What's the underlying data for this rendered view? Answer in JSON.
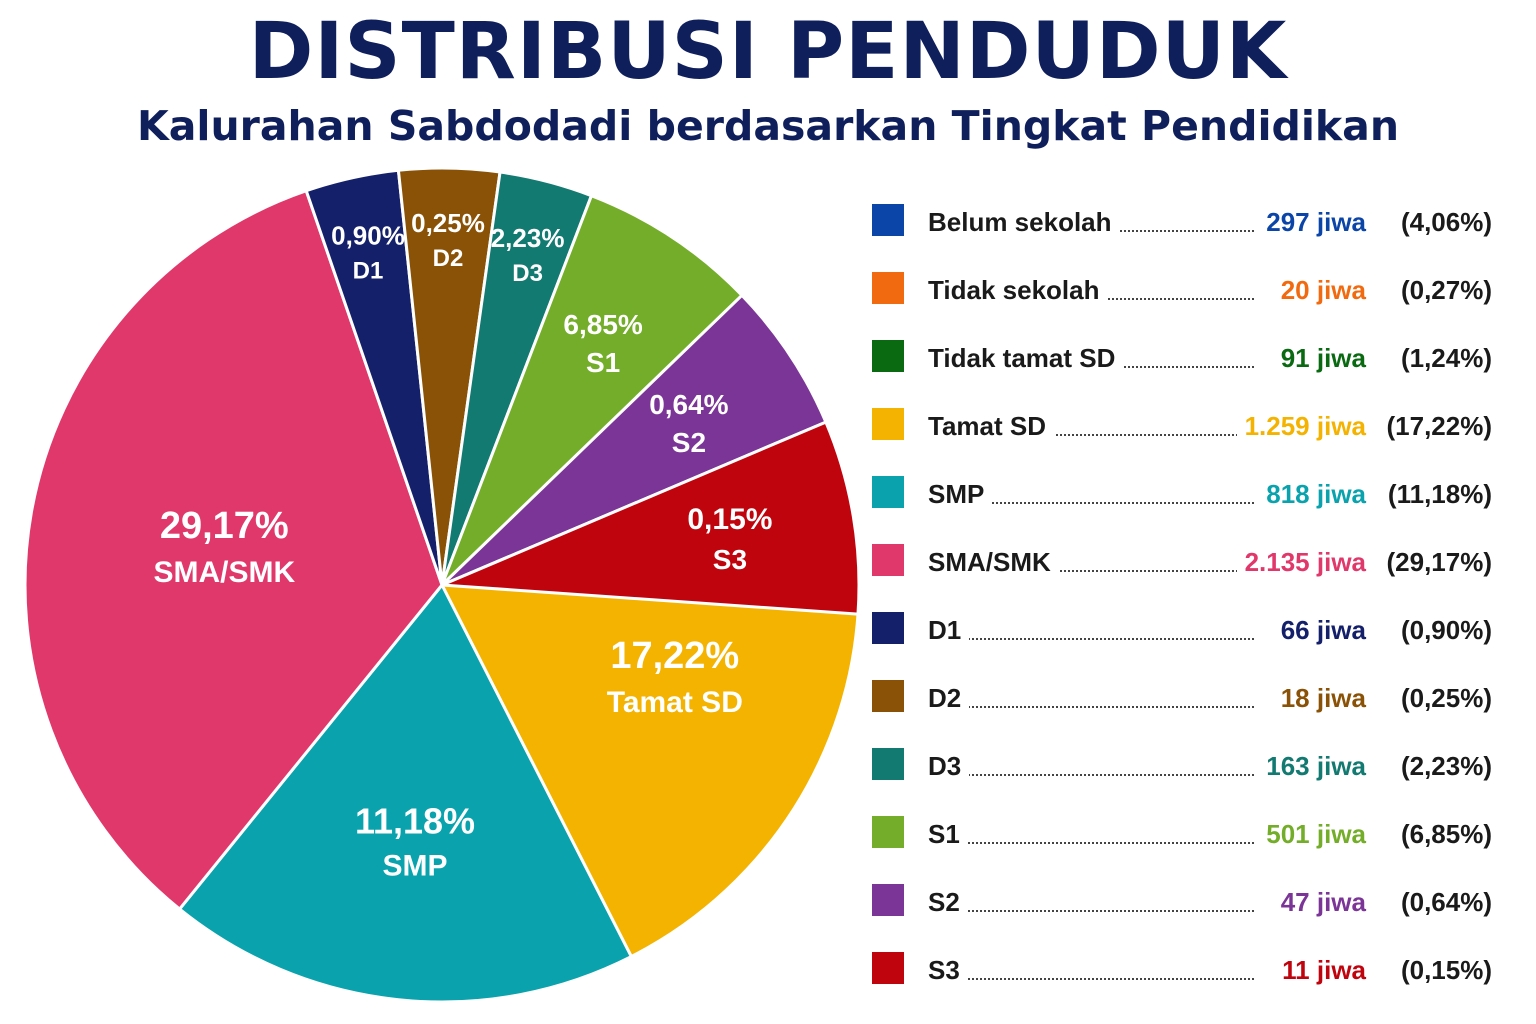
{
  "title": "DISTRIBUSI PENDUDUK",
  "subtitle": "Kalurahan Sabdodadi berdasarkan Tingkat Pendidikan",
  "chart_data": {
    "type": "pie",
    "title": "DISTRIBUSI PENDUDUK",
    "subtitle": "Kalurahan Sabdodadi berdasarkan Tingkat Pendidikan",
    "legend_position": "right",
    "unit": "jiwa",
    "slices": [
      {
        "name": "Belum sekolah",
        "value": 297,
        "value_label": "297 jiwa",
        "percent": 4.06,
        "percent_label": "4,06%",
        "legend_percent": "(4,06%)",
        "color": "#0b45a8"
      },
      {
        "name": "Tidak sekolah",
        "value": 20,
        "value_label": "20 jiwa",
        "percent": 0.27,
        "percent_label": "0,27%",
        "legend_percent": "(0,27%)",
        "color": "#f26a0f"
      },
      {
        "name": "Tidak tamat SD",
        "value": 91,
        "value_label": "91 jiwa",
        "percent": 1.24,
        "percent_label": "1,24%",
        "legend_percent": "(1,24%)",
        "color": "#0a6a12"
      },
      {
        "name": "Tamat SD",
        "value": 1259,
        "value_label": "1.259 jiwa",
        "percent": 17.22,
        "percent_label": "17,22%",
        "legend_percent": "(17,22%)",
        "color": "#f4b300"
      },
      {
        "name": "SMP",
        "value": 818,
        "value_label": "818 jiwa",
        "percent": 11.18,
        "percent_label": "11,18%",
        "legend_percent": "(11,18%)",
        "color": "#0aa3ad"
      },
      {
        "name": "SMA/SMK",
        "value": 2135,
        "value_label": "2.135 jiwa",
        "percent": 29.17,
        "percent_label": "29,17%",
        "legend_percent": "(29,17%)",
        "color": "#e0386b"
      },
      {
        "name": "D1",
        "value": 66,
        "value_label": "66 jiwa",
        "percent": 0.9,
        "percent_label": "0,90%",
        "legend_percent": "(0,90%)",
        "color": "#14216a"
      },
      {
        "name": "D2",
        "value": 18,
        "value_label": "18 jiwa",
        "percent": 0.25,
        "percent_label": "0,25%",
        "legend_percent": "(0,25%)",
        "color": "#8a5206"
      },
      {
        "name": "D3",
        "value": 163,
        "value_label": "163 jiwa",
        "percent": 2.23,
        "percent_label": "2,23%",
        "legend_percent": "(2,23%)",
        "color": "#137a72"
      },
      {
        "name": "S1",
        "value": 501,
        "value_label": "501 jiwa",
        "percent": 6.85,
        "percent_label": "6,85%",
        "legend_percent": "(6,85%)",
        "color": "#74ad29"
      },
      {
        "name": "S2",
        "value": 47,
        "value_label": "47 jiwa",
        "percent": 0.64,
        "percent_label": "0,64%",
        "legend_percent": "(0,64%)",
        "color": "#7b3596"
      },
      {
        "name": "S3",
        "value": 11,
        "value_label": "11 jiwa",
        "percent": 0.15,
        "percent_label": "0,15%",
        "legend_percent": "(0,15%)",
        "color": "#c0040e"
      }
    ]
  }
}
